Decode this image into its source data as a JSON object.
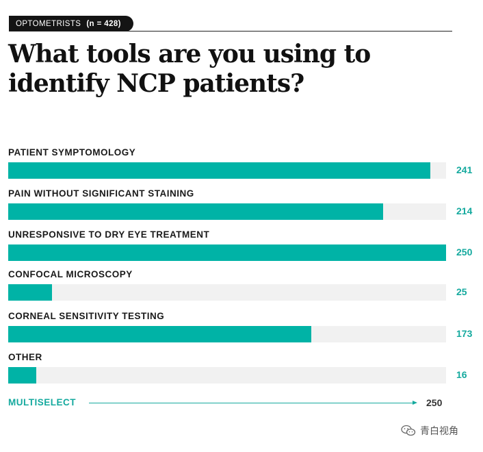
{
  "header": {
    "tag_label": "OPTOMETRISTS",
    "sample_size": "(n = 428)"
  },
  "title": "What tools are you using to identify NCP patients?",
  "colors": {
    "bar": "#00b3a6",
    "track": "#f1f1f1",
    "accent_text": "#14a99e"
  },
  "chart_data": {
    "type": "bar",
    "orientation": "horizontal",
    "title": "What tools are you using to identify NCP patients?",
    "categories": [
      "PATIENT SYMPTOMOLOGY",
      "PAIN WITHOUT SIGNIFICANT STAINING",
      "UNRESPONSIVE TO DRY EYE TREATMENT",
      "CONFOCAL MICROSCOPY",
      "CORNEAL SENSITIVITY TESTING",
      "OTHER"
    ],
    "values": [
      241,
      214,
      250,
      25,
      173,
      16
    ],
    "value_labels": [
      "241",
      "214",
      "250",
      "25",
      "173",
      "16"
    ],
    "xlim": [
      0,
      250
    ],
    "axis_label": "MULTISELECT",
    "axis_max_label": "250"
  },
  "watermark": "青白视角"
}
